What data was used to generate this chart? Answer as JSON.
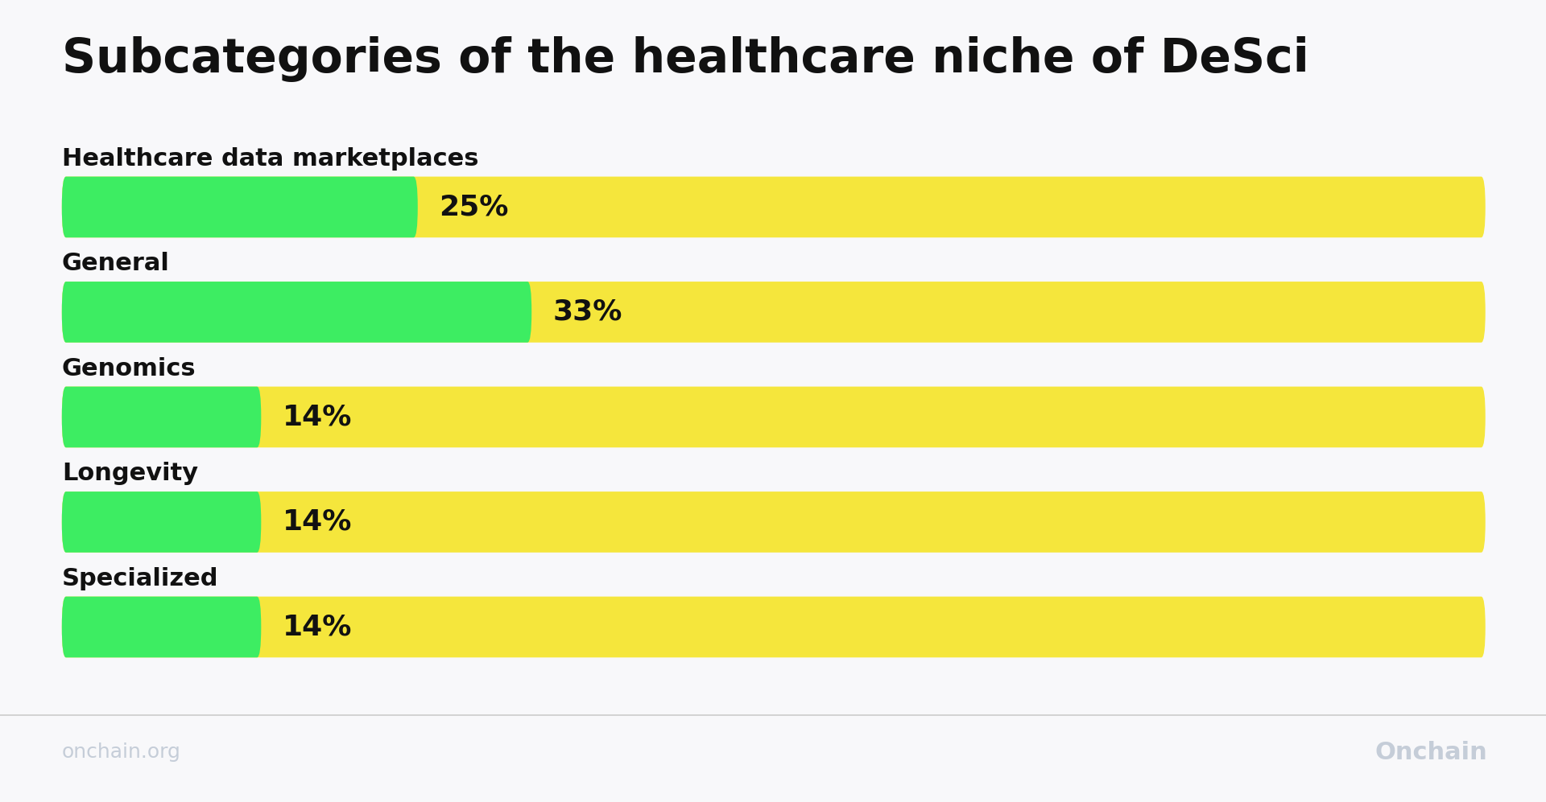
{
  "title": "Subcategories of the healthcare niche of DeSci",
  "categories": [
    "Healthcare data marketplaces",
    "General",
    "Genomics",
    "Longevity",
    "Specialized"
  ],
  "values": [
    25,
    33,
    14,
    14,
    14
  ],
  "max_value": 100,
  "yellow_color": "#F5E63C",
  "green_color": "#3DED62",
  "background_color": "#F8F8FA",
  "title_fontsize": 42,
  "label_fontsize": 22,
  "pct_fontsize": 26,
  "bar_height": 0.58,
  "footer_text_left": "onchain.org",
  "footer_text_right": "Onchain",
  "footer_color": "#C5CDD8",
  "title_color": "#111111",
  "label_color": "#111111"
}
